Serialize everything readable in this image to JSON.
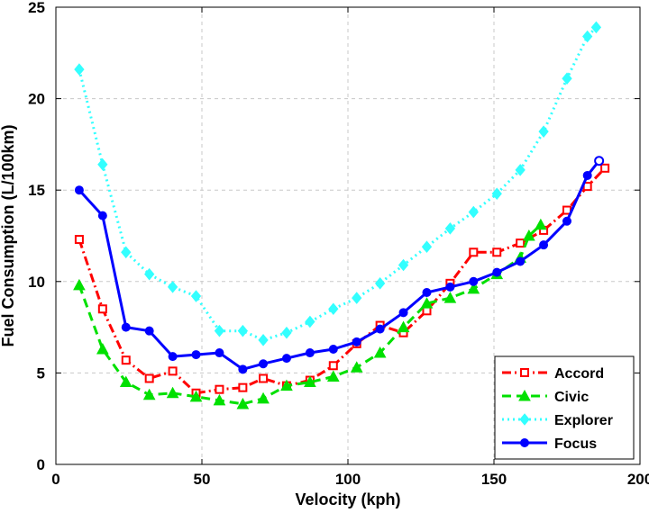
{
  "chart_data": {
    "type": "line",
    "title": "",
    "xlabel": "Velocity (kph)",
    "ylabel": "Fuel Consumption (L/100km)",
    "xlim": [
      0,
      200
    ],
    "ylim": [
      0,
      25
    ],
    "xticks": [
      0,
      50,
      100,
      150,
      200
    ],
    "yticks": [
      0,
      5,
      10,
      15,
      20,
      25
    ],
    "xtick_labels": [
      "0",
      "50",
      "100",
      "150",
      "200"
    ],
    "ytick_labels": [
      "0",
      "5",
      "10",
      "15",
      "20",
      "25"
    ],
    "grid": true,
    "legend_position": "bottom-right",
    "series": [
      {
        "name": "Accord",
        "color": "#ff0000",
        "line_style": "dash-dot",
        "marker": "hollow-square",
        "points": [
          [
            8,
            12.3
          ],
          [
            16,
            8.5
          ],
          [
            24,
            5.7
          ],
          [
            32,
            4.7
          ],
          [
            40,
            5.1
          ],
          [
            48,
            3.9
          ],
          [
            56,
            4.1
          ],
          [
            64,
            4.2
          ],
          [
            71,
            4.7
          ],
          [
            79,
            4.3
          ],
          [
            87,
            4.6
          ],
          [
            95,
            5.4
          ],
          [
            103,
            6.6
          ],
          [
            111,
            7.6
          ],
          [
            119,
            7.2
          ],
          [
            127,
            8.4
          ],
          [
            135,
            9.9
          ],
          [
            143,
            11.6
          ],
          [
            151,
            11.6
          ],
          [
            159,
            12.1
          ],
          [
            167,
            12.8
          ],
          [
            175,
            13.9
          ],
          [
            182,
            15.2
          ],
          [
            188,
            16.2
          ]
        ]
      },
      {
        "name": "Civic",
        "color": "#00e000",
        "line_style": "dashed",
        "marker": "filled-triangle",
        "points": [
          [
            8,
            9.8
          ],
          [
            16,
            6.3
          ],
          [
            24,
            4.5
          ],
          [
            32,
            3.8
          ],
          [
            40,
            3.9
          ],
          [
            48,
            3.7
          ],
          [
            56,
            3.5
          ],
          [
            64,
            3.3
          ],
          [
            71,
            3.6
          ],
          [
            79,
            4.3
          ],
          [
            87,
            4.5
          ],
          [
            95,
            4.8
          ],
          [
            103,
            5.3
          ],
          [
            111,
            6.1
          ],
          [
            119,
            7.5
          ],
          [
            127,
            8.8
          ],
          [
            135,
            9.1
          ],
          [
            143,
            9.6
          ],
          [
            151,
            10.4
          ],
          [
            159,
            11.3
          ],
          [
            162,
            12.5
          ],
          [
            166,
            13.1
          ]
        ]
      },
      {
        "name": "Explorer",
        "color": "#33ffff",
        "line_style": "dotted",
        "marker": "filled-diamond",
        "points": [
          [
            8,
            21.6
          ],
          [
            16,
            16.4
          ],
          [
            24,
            11.6
          ],
          [
            32,
            10.4
          ],
          [
            40,
            9.7
          ],
          [
            48,
            9.2
          ],
          [
            56,
            7.3
          ],
          [
            64,
            7.3
          ],
          [
            71,
            6.8
          ],
          [
            79,
            7.2
          ],
          [
            87,
            7.8
          ],
          [
            95,
            8.5
          ],
          [
            103,
            9.1
          ],
          [
            111,
            9.9
          ],
          [
            119,
            10.9
          ],
          [
            127,
            11.9
          ],
          [
            135,
            12.9
          ],
          [
            143,
            13.8
          ],
          [
            151,
            14.8
          ],
          [
            159,
            16.1
          ],
          [
            167,
            18.2
          ],
          [
            175,
            21.1
          ],
          [
            182,
            23.4
          ],
          [
            185,
            23.9
          ]
        ]
      },
      {
        "name": "Focus",
        "color": "#0000ff",
        "line_style": "solid",
        "marker": "filled-circle",
        "points": [
          [
            8,
            15.0
          ],
          [
            16,
            13.6
          ],
          [
            24,
            7.5
          ],
          [
            32,
            7.3
          ],
          [
            40,
            5.9
          ],
          [
            48,
            6.0
          ],
          [
            56,
            6.1
          ],
          [
            64,
            5.2
          ],
          [
            71,
            5.5
          ],
          [
            79,
            5.8
          ],
          [
            87,
            6.1
          ],
          [
            95,
            6.3
          ],
          [
            103,
            6.7
          ],
          [
            111,
            7.4
          ],
          [
            119,
            8.3
          ],
          [
            127,
            9.4
          ],
          [
            135,
            9.7
          ],
          [
            143,
            10.0
          ],
          [
            151,
            10.5
          ],
          [
            159,
            11.1
          ],
          [
            167,
            12.0
          ],
          [
            175,
            13.3
          ],
          [
            182,
            15.8
          ],
          [
            186,
            16.6
          ]
        ]
      }
    ]
  }
}
